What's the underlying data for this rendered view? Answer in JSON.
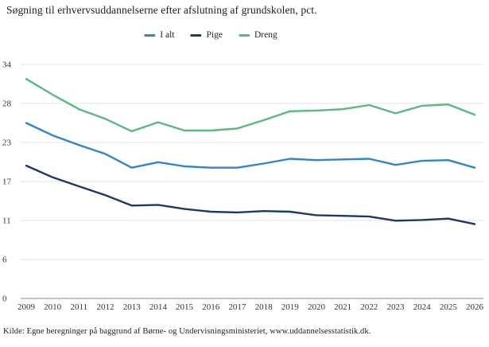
{
  "title": "Søgning til erhvervsuddannelserne efter afslutning af grundskolen, pct.",
  "source": "Kilde: Egne beregninger på baggrund af Børne- og Undervisningsministeriet, www.uddannelsesstatistik.dk.",
  "colors": {
    "i_alt": "#2e86d0",
    "pige": "#1b3a66",
    "dreng": "#55ba83",
    "grid": "#e4e4e4",
    "axis": "#8a8a8a",
    "tick_text": "#333333",
    "title_text": "#1b1b2b"
  },
  "chart_data": {
    "type": "line",
    "title": "Søgning til erhvervsuddannelserne efter afslutning af grundskolen, pct.",
    "xlabel": "",
    "ylabel": "pct.",
    "ylim": [
      0,
      34
    ],
    "grid": true,
    "legend_position": "top-center",
    "categories": [
      2009,
      2010,
      2011,
      2012,
      2013,
      2014,
      2015,
      2016,
      2017,
      2018,
      2019,
      2020,
      2021,
      2022,
      2023,
      2024,
      2025,
      2026
    ],
    "y_ticks": [
      {
        "v": 0,
        "label": "0"
      },
      {
        "v": 5.67,
        "label": "6"
      },
      {
        "v": 11.33,
        "label": "11"
      },
      {
        "v": 17,
        "label": "17"
      },
      {
        "v": 22.67,
        "label": "23"
      },
      {
        "v": 28.33,
        "label": "28"
      },
      {
        "v": 34,
        "label": "34"
      }
    ],
    "series": [
      {
        "name": "I alt",
        "color_key": "i_alt",
        "values": [
          25.5,
          23.7,
          22.3,
          21.0,
          19.0,
          19.8,
          19.2,
          19.0,
          19.0,
          19.6,
          20.3,
          20.1,
          20.2,
          20.3,
          19.4,
          20.0,
          20.1,
          19.0
        ]
      },
      {
        "name": "Pige",
        "color_key": "pige",
        "values": [
          19.3,
          17.6,
          16.3,
          15.0,
          13.5,
          13.6,
          13.0,
          12.6,
          12.5,
          12.7,
          12.6,
          12.1,
          12.0,
          11.9,
          11.3,
          11.4,
          11.6,
          10.8
        ]
      },
      {
        "name": "Dreng",
        "color_key": "dreng",
        "values": [
          31.9,
          29.6,
          27.5,
          26.1,
          24.3,
          25.6,
          24.4,
          24.4,
          24.7,
          25.9,
          27.2,
          27.3,
          27.5,
          28.1,
          26.9,
          28.0,
          28.2,
          26.7
        ]
      }
    ]
  }
}
